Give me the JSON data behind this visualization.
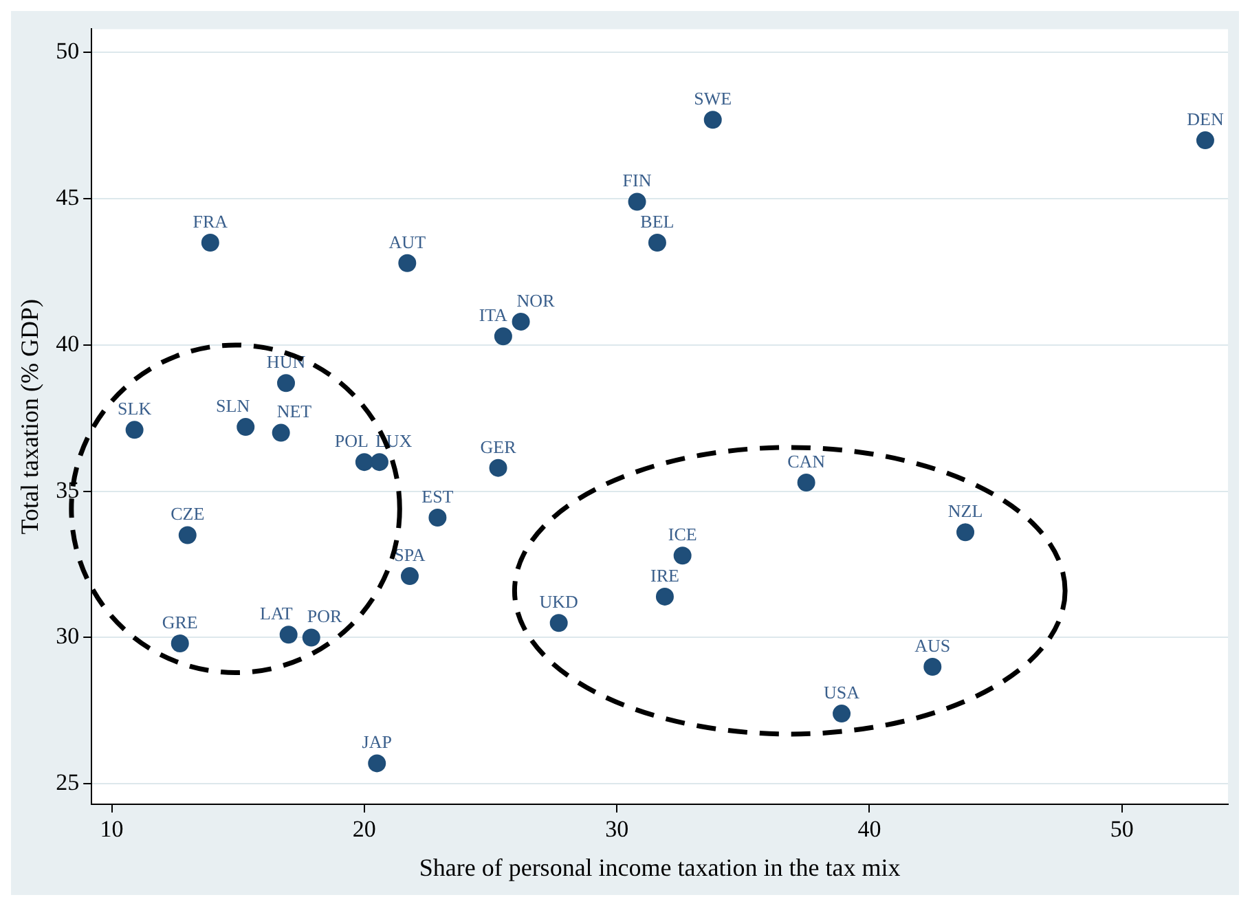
{
  "chart_data": {
    "type": "scatter",
    "xlabel": "Share of personal income taxation in the tax mix",
    "ylabel": "Total taxation (% GDP)",
    "x": [
      33.8,
      53.3,
      30.8,
      31.6,
      13.9,
      21.7,
      26.2,
      25.5,
      16.9,
      10.9,
      15.3,
      16.7,
      20.0,
      20.6,
      25.3,
      22.9,
      37.5,
      13.0,
      43.8,
      32.6,
      21.8,
      31.9,
      27.7,
      17.0,
      17.9,
      12.7,
      42.5,
      38.9,
      20.5
    ],
    "series": [
      {
        "color": "#1f4e79",
        "values": [
          47.7,
          47.0,
          44.9,
          43.5,
          43.5,
          42.8,
          40.8,
          40.3,
          38.7,
          37.1,
          37.2,
          37.0,
          36.0,
          36.0,
          35.8,
          34.1,
          35.3,
          33.5,
          33.6,
          32.8,
          32.1,
          31.4,
          30.5,
          30.1,
          30.0,
          29.8,
          29.0,
          27.4,
          25.7
        ]
      }
    ],
    "annotations": [
      {
        "text": "SWE",
        "x": 33.8,
        "y": 47.7
      },
      {
        "text": "DEN",
        "x": 53.3,
        "y": 47.0
      },
      {
        "text": "FIN",
        "x": 30.8,
        "y": 44.9
      },
      {
        "text": "BEL",
        "x": 31.6,
        "y": 43.5
      },
      {
        "text": "FRA",
        "x": 13.9,
        "y": 43.5
      },
      {
        "text": "AUT",
        "x": 21.7,
        "y": 42.8
      },
      {
        "text": "NOR",
        "x": 26.2,
        "y": 40.8
      },
      {
        "text": "ITA",
        "x": 25.5,
        "y": 40.3
      },
      {
        "text": "HUN",
        "x": 16.9,
        "y": 38.7
      },
      {
        "text": "SLK",
        "x": 10.9,
        "y": 37.1
      },
      {
        "text": "SLN",
        "x": 15.3,
        "y": 37.2
      },
      {
        "text": "NET",
        "x": 16.7,
        "y": 37.0
      },
      {
        "text": "POL",
        "x": 20.0,
        "y": 36.0
      },
      {
        "text": "LUX",
        "x": 20.6,
        "y": 36.0
      },
      {
        "text": "GER",
        "x": 25.3,
        "y": 35.8
      },
      {
        "text": "EST",
        "x": 22.9,
        "y": 34.1
      },
      {
        "text": "CAN",
        "x": 37.5,
        "y": 35.3
      },
      {
        "text": "CZE",
        "x": 13.0,
        "y": 33.5
      },
      {
        "text": "NZL",
        "x": 43.8,
        "y": 33.6
      },
      {
        "text": "ICE",
        "x": 32.6,
        "y": 32.8
      },
      {
        "text": "SPA",
        "x": 21.8,
        "y": 32.1
      },
      {
        "text": "IRE",
        "x": 31.9,
        "y": 31.4
      },
      {
        "text": "UKD",
        "x": 27.7,
        "y": 30.5
      },
      {
        "text": "LAT",
        "x": 17.0,
        "y": 30.1
      },
      {
        "text": "POR",
        "x": 17.9,
        "y": 30.0
      },
      {
        "text": "GRE",
        "x": 12.7,
        "y": 29.8
      },
      {
        "text": "AUS",
        "x": 42.5,
        "y": 29.0
      },
      {
        "text": "USA",
        "x": 38.9,
        "y": 27.4
      },
      {
        "text": "JAP",
        "x": 20.5,
        "y": 25.7
      }
    ],
    "xlim": [
      9.2,
      54.2
    ],
    "ylim": [
      24.3,
      50.8
    ],
    "xticks": [
      10,
      20,
      30,
      40,
      50
    ],
    "yticks": [
      25,
      30,
      35,
      40,
      45,
      50
    ],
    "grid": "y",
    "marker": "circle",
    "legend": false
  }
}
